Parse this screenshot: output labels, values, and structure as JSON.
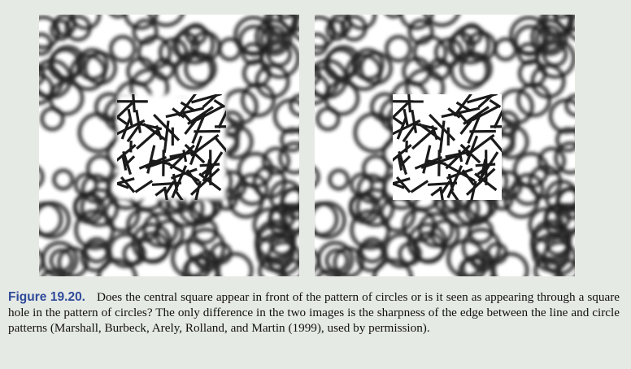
{
  "figure": {
    "label": "Figure 19.20.",
    "caption": "Does the central square appear in front of the pattern of circles or is it seen as appearing through a square hole in the pattern of circles? The only difference in the two images is the sharpness of the edge between the line and circle patterns (Marshall, Burbeck, Arely, Rolland, and Martin (1999), used by permission)."
  },
  "images": [
    {
      "name": "blurred-edge-stimulus"
    },
    {
      "name": "sharp-edge-stimulus"
    }
  ],
  "colors": {
    "background": "#e6eae4",
    "label": "#2f4a9a",
    "ink": "#1a1a1a"
  }
}
